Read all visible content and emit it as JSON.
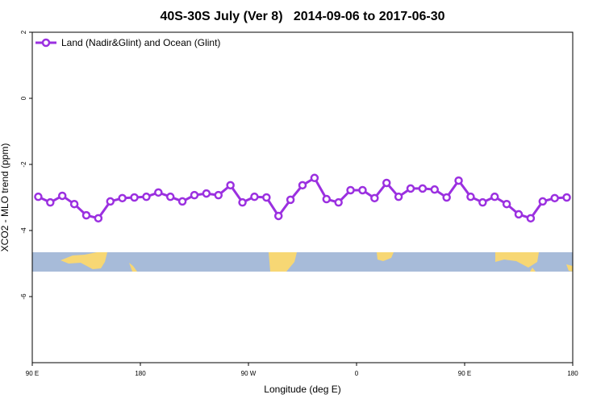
{
  "chart_data": {
    "type": "line",
    "title": "40S-30S July (Ver 8)   2014-09-06 to 2017-06-30",
    "x_label": "Longitude (deg E)",
    "y_label": "XCO2 - MLO trend (ppm)",
    "x": [
      95,
      105,
      115,
      125,
      135,
      145,
      155,
      165,
      175,
      185,
      195,
      205,
      215,
      225,
      235,
      245,
      255,
      265,
      275,
      285,
      295,
      305,
      315,
      325,
      335,
      345,
      355,
      365,
      375,
      385,
      395,
      405,
      415,
      425,
      435,
      445,
      455,
      465,
      475,
      485,
      495,
      505,
      515,
      525,
      535
    ],
    "series": [
      {
        "name": "Land (Nadir&Glint) and Ocean (Glint)",
        "color": "#9b30e0",
        "values": [
          -2.98,
          -3.15,
          -2.95,
          -3.2,
          -3.54,
          -3.63,
          -3.12,
          -3.02,
          -3.0,
          -2.98,
          -2.85,
          -2.98,
          -3.12,
          -2.93,
          -2.88,
          -2.93,
          -2.63,
          -3.15,
          -2.98,
          -3.0,
          -3.56,
          -3.07,
          -2.63,
          -2.41,
          -3.05,
          -3.15,
          -2.78,
          -2.78,
          -3.02,
          -2.56,
          -2.98,
          -2.73,
          -2.73,
          -2.76,
          -3.0,
          -2.49,
          -2.98,
          -3.15,
          -2.98,
          -3.2,
          -3.51,
          -3.63,
          -3.12,
          -3.02,
          -3.0
        ]
      }
    ],
    "xlim": [
      90,
      540
    ],
    "xticks": [
      {
        "value": 90,
        "label": "90 E"
      },
      180,
      {
        "value": 270,
        "label": "90 W"
      },
      {
        "value": 360,
        "label": "0"
      },
      {
        "value": 450,
        "label": "90 E"
      },
      {
        "value": 540,
        "label": "180"
      }
    ],
    "ylim": [
      -8,
      2
    ],
    "yticks": [
      2,
      0,
      -2,
      -4,
      -6
    ],
    "legend": "top-left"
  }
}
